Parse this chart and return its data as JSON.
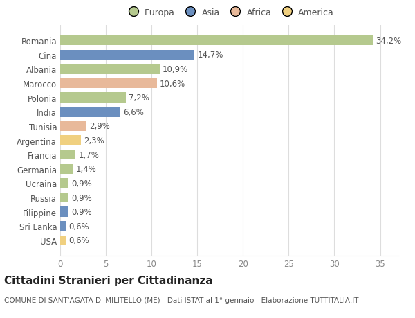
{
  "countries": [
    "Romania",
    "Cina",
    "Albania",
    "Marocco",
    "Polonia",
    "India",
    "Tunisia",
    "Argentina",
    "Francia",
    "Germania",
    "Ucraina",
    "Russia",
    "Filippine",
    "Sri Lanka",
    "USA"
  ],
  "values": [
    34.2,
    14.7,
    10.9,
    10.6,
    7.2,
    6.6,
    2.9,
    2.3,
    1.7,
    1.4,
    0.9,
    0.9,
    0.9,
    0.6,
    0.6
  ],
  "labels": [
    "34,2%",
    "14,7%",
    "10,9%",
    "10,6%",
    "7,2%",
    "6,6%",
    "2,9%",
    "2,3%",
    "1,7%",
    "1,4%",
    "0,9%",
    "0,9%",
    "0,9%",
    "0,6%",
    "0,6%"
  ],
  "colors": [
    "#b5c98e",
    "#6b8fbf",
    "#b5c98e",
    "#e8b99a",
    "#b5c98e",
    "#6b8fbf",
    "#e8b99a",
    "#f0d080",
    "#b5c98e",
    "#b5c98e",
    "#b5c98e",
    "#b5c98e",
    "#6b8fbf",
    "#6b8fbf",
    "#f0d080"
  ],
  "legend_labels": [
    "Europa",
    "Asia",
    "Africa",
    "America"
  ],
  "legend_colors": [
    "#b5c98e",
    "#6b8fbf",
    "#e8b99a",
    "#f0d080"
  ],
  "title": "Cittadini Stranieri per Cittadinanza",
  "subtitle": "COMUNE DI SANT'AGATA DI MILITELLO (ME) - Dati ISTAT al 1° gennaio - Elaborazione TUTTITALIA.IT",
  "xlim": [
    0,
    37
  ],
  "xticks": [
    0,
    5,
    10,
    15,
    20,
    25,
    30,
    35
  ],
  "background_color": "#ffffff",
  "grid_color": "#dddddd",
  "bar_height": 0.7,
  "label_fontsize": 8.5,
  "tick_fontsize": 8.5,
  "title_fontsize": 11,
  "subtitle_fontsize": 7.5
}
